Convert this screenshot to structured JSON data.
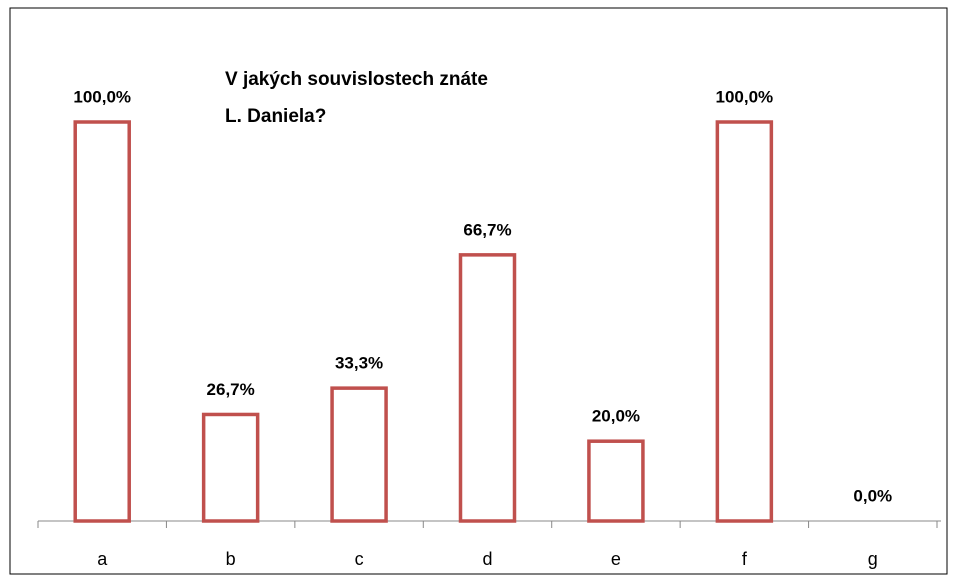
{
  "chart_data": {
    "type": "bar",
    "title": [
      "V jakých souvislostech znáte",
      "L. Daniela?"
    ],
    "categories": [
      "a",
      "b",
      "c",
      "d",
      "e",
      "f",
      "g"
    ],
    "values": [
      100,
      26.7,
      33.3,
      66.7,
      20,
      100,
      0
    ],
    "value_labels": [
      "100,0%",
      "26,7%",
      "33,3%",
      "66,7%",
      "20,0%",
      "100,0%",
      "0,0%"
    ],
    "color": "#c0504d",
    "ylim": [
      0,
      100
    ]
  }
}
